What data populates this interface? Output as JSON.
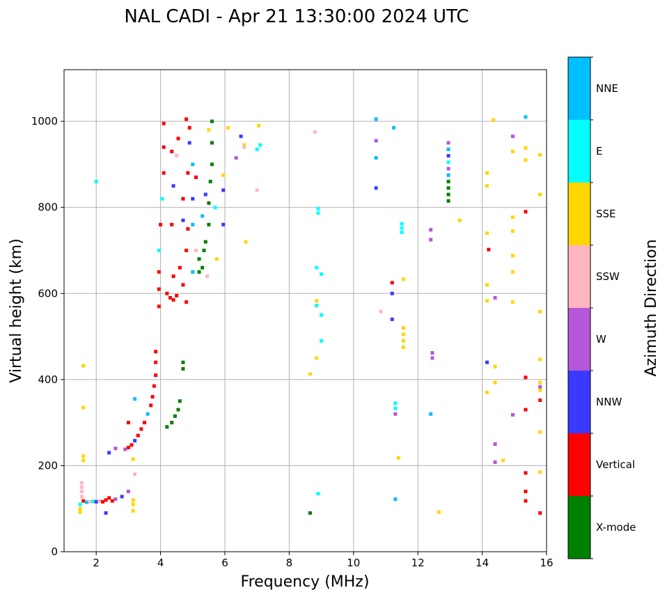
{
  "chart_data": {
    "type": "scatter",
    "title": "NAL CADI - Apr 21 13:30:00 2024 UTC",
    "xlabel": "Frequency (MHz)",
    "ylabel": "Virtual height (km)",
    "xlim": [
      1,
      16
    ],
    "ylim": [
      0,
      1120
    ],
    "xticks": [
      2,
      4,
      6,
      8,
      10,
      12,
      14,
      16
    ],
    "yticks": [
      0,
      200,
      400,
      600,
      800,
      1000
    ],
    "grid": true,
    "colorbar": {
      "label": "Azimuth Direction",
      "categories": [
        {
          "name": "X-mode",
          "color": "#008000"
        },
        {
          "name": "Vertical",
          "color": "#ff0000"
        },
        {
          "name": "NNW",
          "color": "#3a3aff"
        },
        {
          "name": "W",
          "color": "#b457d8"
        },
        {
          "name": "SSW",
          "color": "#ffb6c1"
        },
        {
          "name": "SSE",
          "color": "#ffd700"
        },
        {
          "name": "E",
          "color": "#00ffff"
        },
        {
          "name": "NNE",
          "color": "#00bfff"
        }
      ]
    },
    "points": [
      {
        "f": 1.6,
        "h": 432,
        "c": "SSE"
      },
      {
        "f": 1.6,
        "h": 335,
        "c": "SSE"
      },
      {
        "f": 1.6,
        "h": 222,
        "c": "SSE"
      },
      {
        "f": 1.6,
        "h": 212,
        "c": "SSE"
      },
      {
        "f": 1.55,
        "h": 160,
        "c": "SSW"
      },
      {
        "f": 1.55,
        "h": 150,
        "c": "SSW"
      },
      {
        "f": 1.55,
        "h": 140,
        "c": "SSW"
      },
      {
        "f": 1.55,
        "h": 128,
        "c": "SSW"
      },
      {
        "f": 1.5,
        "h": 110,
        "c": "E"
      },
      {
        "f": 1.5,
        "h": 100,
        "c": "SSE"
      },
      {
        "f": 1.5,
        "h": 92,
        "c": "SSE"
      },
      {
        "f": 1.6,
        "h": 118,
        "c": "Vertical"
      },
      {
        "f": 1.7,
        "h": 115,
        "c": "NNE"
      },
      {
        "f": 1.8,
        "h": 116,
        "c": "SSW"
      },
      {
        "f": 1.9,
        "h": 117,
        "c": "E"
      },
      {
        "f": 2.0,
        "h": 116,
        "c": "NNW"
      },
      {
        "f": 2.1,
        "h": 118,
        "c": "SSW"
      },
      {
        "f": 2.2,
        "h": 116,
        "c": "Vertical"
      },
      {
        "f": 2.3,
        "h": 120,
        "c": "Vertical"
      },
      {
        "f": 2.4,
        "h": 125,
        "c": "Vertical"
      },
      {
        "f": 2.5,
        "h": 118,
        "c": "Vertical"
      },
      {
        "f": 2.6,
        "h": 122,
        "c": "W"
      },
      {
        "f": 2.8,
        "h": 128,
        "c": "NNW"
      },
      {
        "f": 3.0,
        "h": 140,
        "c": "W"
      },
      {
        "f": 3.15,
        "h": 120,
        "c": "SSE"
      },
      {
        "f": 3.15,
        "h": 110,
        "c": "SSE"
      },
      {
        "f": 3.15,
        "h": 95,
        "c": "SSE"
      },
      {
        "f": 2.3,
        "h": 90,
        "c": "NNW"
      },
      {
        "f": 2.0,
        "h": 860,
        "c": "E"
      },
      {
        "f": 2.4,
        "h": 230,
        "c": "NNW"
      },
      {
        "f": 2.6,
        "h": 240,
        "c": "W"
      },
      {
        "f": 2.9,
        "h": 238,
        "c": "W"
      },
      {
        "f": 3.0,
        "h": 242,
        "c": "Vertical"
      },
      {
        "f": 3.1,
        "h": 248,
        "c": "Vertical"
      },
      {
        "f": 3.2,
        "h": 258,
        "c": "NNW"
      },
      {
        "f": 3.3,
        "h": 270,
        "c": "Vertical"
      },
      {
        "f": 3.4,
        "h": 285,
        "c": "Vertical"
      },
      {
        "f": 3.5,
        "h": 300,
        "c": "Vertical"
      },
      {
        "f": 3.6,
        "h": 320,
        "c": "NNE"
      },
      {
        "f": 3.7,
        "h": 340,
        "c": "Vertical"
      },
      {
        "f": 3.75,
        "h": 360,
        "c": "Vertical"
      },
      {
        "f": 3.8,
        "h": 385,
        "c": "Vertical"
      },
      {
        "f": 3.85,
        "h": 410,
        "c": "Vertical"
      },
      {
        "f": 3.85,
        "h": 440,
        "c": "Vertical"
      },
      {
        "f": 3.85,
        "h": 465,
        "c": "Vertical"
      },
      {
        "f": 3.0,
        "h": 300,
        "c": "Vertical"
      },
      {
        "f": 3.2,
        "h": 355,
        "c": "NNE"
      },
      {
        "f": 3.2,
        "h": 180,
        "c": "SSW"
      },
      {
        "f": 3.15,
        "h": 215,
        "c": "SSE"
      },
      {
        "f": 4.2,
        "h": 290,
        "c": "X-mode"
      },
      {
        "f": 4.35,
        "h": 300,
        "c": "X-mode"
      },
      {
        "f": 4.45,
        "h": 315,
        "c": "X-mode"
      },
      {
        "f": 4.55,
        "h": 330,
        "c": "X-mode"
      },
      {
        "f": 4.6,
        "h": 350,
        "c": "X-mode"
      },
      {
        "f": 4.7,
        "h": 425,
        "c": "X-mode"
      },
      {
        "f": 4.7,
        "h": 440,
        "c": "X-mode"
      },
      {
        "f": 3.95,
        "h": 570,
        "c": "Vertical"
      },
      {
        "f": 3.95,
        "h": 610,
        "c": "Vertical"
      },
      {
        "f": 3.95,
        "h": 650,
        "c": "Vertical"
      },
      {
        "f": 3.95,
        "h": 700,
        "c": "E"
      },
      {
        "f": 4.0,
        "h": 760,
        "c": "Vertical"
      },
      {
        "f": 4.05,
        "h": 820,
        "c": "E"
      },
      {
        "f": 4.1,
        "h": 880,
        "c": "Vertical"
      },
      {
        "f": 4.1,
        "h": 940,
        "c": "Vertical"
      },
      {
        "f": 4.1,
        "h": 995,
        "c": "Vertical"
      },
      {
        "f": 4.2,
        "h": 600,
        "c": "Vertical"
      },
      {
        "f": 4.3,
        "h": 590,
        "c": "Vertical"
      },
      {
        "f": 4.4,
        "h": 585,
        "c": "Vertical"
      },
      {
        "f": 4.5,
        "h": 595,
        "c": "Vertical"
      },
      {
        "f": 4.4,
        "h": 640,
        "c": "Vertical"
      },
      {
        "f": 4.6,
        "h": 660,
        "c": "Vertical"
      },
      {
        "f": 4.7,
        "h": 620,
        "c": "Vertical"
      },
      {
        "f": 4.8,
        "h": 580,
        "c": "Vertical"
      },
      {
        "f": 4.35,
        "h": 760,
        "c": "Vertical"
      },
      {
        "f": 4.4,
        "h": 850,
        "c": "NNW"
      },
      {
        "f": 4.35,
        "h": 930,
        "c": "Vertical"
      },
      {
        "f": 4.5,
        "h": 920,
        "c": "SSW"
      },
      {
        "f": 4.55,
        "h": 960,
        "c": "Vertical"
      },
      {
        "f": 4.7,
        "h": 770,
        "c": "NNW"
      },
      {
        "f": 4.7,
        "h": 820,
        "c": "Vertical"
      },
      {
        "f": 4.8,
        "h": 700,
        "c": "Vertical"
      },
      {
        "f": 4.85,
        "h": 750,
        "c": "Vertical"
      },
      {
        "f": 4.85,
        "h": 880,
        "c": "Vertical"
      },
      {
        "f": 4.8,
        "h": 1005,
        "c": "Vertical"
      },
      {
        "f": 4.9,
        "h": 985,
        "c": "Vertical"
      },
      {
        "f": 4.9,
        "h": 950,
        "c": "NNW"
      },
      {
        "f": 5.0,
        "h": 900,
        "c": "NNE"
      },
      {
        "f": 5.0,
        "h": 820,
        "c": "NNW"
      },
      {
        "f": 5.0,
        "h": 760,
        "c": "NNE"
      },
      {
        "f": 5.1,
        "h": 870,
        "c": "Vertical"
      },
      {
        "f": 5.1,
        "h": 700,
        "c": "SSW"
      },
      {
        "f": 5.0,
        "h": 650,
        "c": "NNE"
      },
      {
        "f": 5.2,
        "h": 680,
        "c": "X-mode"
      },
      {
        "f": 5.3,
        "h": 660,
        "c": "X-mode"
      },
      {
        "f": 5.35,
        "h": 700,
        "c": "X-mode"
      },
      {
        "f": 5.2,
        "h": 650,
        "c": "X-mode"
      },
      {
        "f": 5.4,
        "h": 720,
        "c": "X-mode"
      },
      {
        "f": 5.5,
        "h": 760,
        "c": "X-mode"
      },
      {
        "f": 5.5,
        "h": 810,
        "c": "X-mode"
      },
      {
        "f": 5.55,
        "h": 860,
        "c": "X-mode"
      },
      {
        "f": 5.6,
        "h": 900,
        "c": "X-mode"
      },
      {
        "f": 5.6,
        "h": 950,
        "c": "X-mode"
      },
      {
        "f": 5.6,
        "h": 1000,
        "c": "X-mode"
      },
      {
        "f": 5.4,
        "h": 830,
        "c": "NNW"
      },
      {
        "f": 5.3,
        "h": 780,
        "c": "NNE"
      },
      {
        "f": 5.5,
        "h": 980,
        "c": "SSE"
      },
      {
        "f": 5.45,
        "h": 640,
        "c": "SSW"
      },
      {
        "f": 5.7,
        "h": 800,
        "c": "E"
      },
      {
        "f": 5.75,
        "h": 680,
        "c": "SSE"
      },
      {
        "f": 5.95,
        "h": 760,
        "c": "NNW"
      },
      {
        "f": 5.95,
        "h": 840,
        "c": "NNW"
      },
      {
        "f": 5.95,
        "h": 875,
        "c": "SSE"
      },
      {
        "f": 6.1,
        "h": 985,
        "c": "SSE"
      },
      {
        "f": 6.5,
        "h": 965,
        "c": "NNW"
      },
      {
        "f": 6.6,
        "h": 945,
        "c": "SSE"
      },
      {
        "f": 6.6,
        "h": 940,
        "c": "SSW"
      },
      {
        "f": 6.35,
        "h": 915,
        "c": "W"
      },
      {
        "f": 7.0,
        "h": 935,
        "c": "E"
      },
      {
        "f": 7.05,
        "h": 990,
        "c": "SSE"
      },
      {
        "f": 7.1,
        "h": 945,
        "c": "E"
      },
      {
        "f": 7.0,
        "h": 840,
        "c": "SSW"
      },
      {
        "f": 6.65,
        "h": 720,
        "c": "SSE"
      },
      {
        "f": 8.8,
        "h": 975,
        "c": "SSW"
      },
      {
        "f": 8.9,
        "h": 797,
        "c": "E"
      },
      {
        "f": 8.9,
        "h": 787,
        "c": "E"
      },
      {
        "f": 8.85,
        "h": 660,
        "c": "E"
      },
      {
        "f": 9.0,
        "h": 645,
        "c": "E"
      },
      {
        "f": 8.85,
        "h": 583,
        "c": "SSE"
      },
      {
        "f": 8.85,
        "h": 572,
        "c": "E"
      },
      {
        "f": 9.0,
        "h": 550,
        "c": "E"
      },
      {
        "f": 9.0,
        "h": 490,
        "c": "E"
      },
      {
        "f": 8.85,
        "h": 450,
        "c": "SSE"
      },
      {
        "f": 8.65,
        "h": 413,
        "c": "SSE"
      },
      {
        "f": 8.9,
        "h": 135,
        "c": "E"
      },
      {
        "f": 8.65,
        "h": 90,
        "c": "X-mode"
      },
      {
        "f": 10.7,
        "h": 1005,
        "c": "NNE"
      },
      {
        "f": 11.25,
        "h": 985,
        "c": "NNE"
      },
      {
        "f": 10.7,
        "h": 955,
        "c": "W"
      },
      {
        "f": 10.7,
        "h": 915,
        "c": "NNE"
      },
      {
        "f": 10.7,
        "h": 845,
        "c": "NNW"
      },
      {
        "f": 10.85,
        "h": 558,
        "c": "SSW"
      },
      {
        "f": 11.2,
        "h": 625,
        "c": "Vertical"
      },
      {
        "f": 11.2,
        "h": 600,
        "c": "NNW"
      },
      {
        "f": 11.2,
        "h": 540,
        "c": "NNW"
      },
      {
        "f": 11.5,
        "h": 762,
        "c": "E"
      },
      {
        "f": 11.5,
        "h": 752,
        "c": "E"
      },
      {
        "f": 11.5,
        "h": 742,
        "c": "E"
      },
      {
        "f": 11.55,
        "h": 633,
        "c": "SSE"
      },
      {
        "f": 11.55,
        "h": 520,
        "c": "SSE"
      },
      {
        "f": 11.55,
        "h": 505,
        "c": "SSE"
      },
      {
        "f": 11.55,
        "h": 490,
        "c": "SSE"
      },
      {
        "f": 11.55,
        "h": 475,
        "c": "SSE"
      },
      {
        "f": 11.3,
        "h": 345,
        "c": "E"
      },
      {
        "f": 11.3,
        "h": 333,
        "c": "E"
      },
      {
        "f": 11.3,
        "h": 320,
        "c": "W"
      },
      {
        "f": 11.4,
        "h": 218,
        "c": "SSE"
      },
      {
        "f": 11.3,
        "h": 122,
        "c": "NNE"
      },
      {
        "f": 12.4,
        "h": 748,
        "c": "W"
      },
      {
        "f": 12.4,
        "h": 725,
        "c": "W"
      },
      {
        "f": 12.45,
        "h": 462,
        "c": "W"
      },
      {
        "f": 12.45,
        "h": 450,
        "c": "W"
      },
      {
        "f": 12.4,
        "h": 320,
        "c": "NNE"
      },
      {
        "f": 12.65,
        "h": 92,
        "c": "SSE"
      },
      {
        "f": 12.95,
        "h": 950,
        "c": "W"
      },
      {
        "f": 12.95,
        "h": 935,
        "c": "NNE"
      },
      {
        "f": 12.95,
        "h": 920,
        "c": "NNW"
      },
      {
        "f": 12.95,
        "h": 905,
        "c": "E"
      },
      {
        "f": 12.95,
        "h": 890,
        "c": "W"
      },
      {
        "f": 12.95,
        "h": 875,
        "c": "NNE"
      },
      {
        "f": 12.95,
        "h": 860,
        "c": "X-mode"
      },
      {
        "f": 12.95,
        "h": 845,
        "c": "X-mode"
      },
      {
        "f": 12.95,
        "h": 830,
        "c": "X-mode"
      },
      {
        "f": 12.95,
        "h": 815,
        "c": "X-mode"
      },
      {
        "f": 13.3,
        "h": 770,
        "c": "SSE"
      },
      {
        "f": 14.15,
        "h": 880,
        "c": "SSE"
      },
      {
        "f": 14.15,
        "h": 850,
        "c": "SSE"
      },
      {
        "f": 14.15,
        "h": 740,
        "c": "SSE"
      },
      {
        "f": 14.2,
        "h": 702,
        "c": "Vertical"
      },
      {
        "f": 14.15,
        "h": 620,
        "c": "SSE"
      },
      {
        "f": 14.15,
        "h": 583,
        "c": "SSE"
      },
      {
        "f": 14.15,
        "h": 440,
        "c": "NNW"
      },
      {
        "f": 14.15,
        "h": 370,
        "c": "SSE"
      },
      {
        "f": 14.35,
        "h": 1003,
        "c": "SSE"
      },
      {
        "f": 14.4,
        "h": 590,
        "c": "W"
      },
      {
        "f": 14.4,
        "h": 430,
        "c": "SSE"
      },
      {
        "f": 14.4,
        "h": 393,
        "c": "SSE"
      },
      {
        "f": 14.4,
        "h": 250,
        "c": "W"
      },
      {
        "f": 14.4,
        "h": 208,
        "c": "W"
      },
      {
        "f": 14.65,
        "h": 212,
        "c": "SSE"
      },
      {
        "f": 14.95,
        "h": 965,
        "c": "W"
      },
      {
        "f": 14.95,
        "h": 930,
        "c": "SSE"
      },
      {
        "f": 14.95,
        "h": 777,
        "c": "SSE"
      },
      {
        "f": 14.95,
        "h": 745,
        "c": "SSE"
      },
      {
        "f": 14.95,
        "h": 688,
        "c": "SSE"
      },
      {
        "f": 14.95,
        "h": 650,
        "c": "SSE"
      },
      {
        "f": 14.95,
        "h": 580,
        "c": "SSE"
      },
      {
        "f": 14.95,
        "h": 318,
        "c": "W"
      },
      {
        "f": 15.35,
        "h": 1010,
        "c": "NNE"
      },
      {
        "f": 15.35,
        "h": 938,
        "c": "SSE"
      },
      {
        "f": 15.35,
        "h": 910,
        "c": "SSE"
      },
      {
        "f": 15.35,
        "h": 790,
        "c": "Vertical"
      },
      {
        "f": 15.35,
        "h": 405,
        "c": "Vertical"
      },
      {
        "f": 15.35,
        "h": 330,
        "c": "Vertical"
      },
      {
        "f": 15.35,
        "h": 183,
        "c": "Vertical"
      },
      {
        "f": 15.35,
        "h": 140,
        "c": "Vertical"
      },
      {
        "f": 15.35,
        "h": 118,
        "c": "Vertical"
      },
      {
        "f": 15.8,
        "h": 922,
        "c": "SSE"
      },
      {
        "f": 15.8,
        "h": 830,
        "c": "SSE"
      },
      {
        "f": 15.8,
        "h": 558,
        "c": "SSE"
      },
      {
        "f": 15.8,
        "h": 447,
        "c": "SSE"
      },
      {
        "f": 15.8,
        "h": 393,
        "c": "SSE"
      },
      {
        "f": 15.8,
        "h": 383,
        "c": "W"
      },
      {
        "f": 15.8,
        "h": 375,
        "c": "SSE"
      },
      {
        "f": 15.8,
        "h": 352,
        "c": "Vertical"
      },
      {
        "f": 15.8,
        "h": 278,
        "c": "SSE"
      },
      {
        "f": 15.8,
        "h": 185,
        "c": "SSE"
      },
      {
        "f": 15.8,
        "h": 90,
        "c": "Vertical"
      }
    ]
  }
}
